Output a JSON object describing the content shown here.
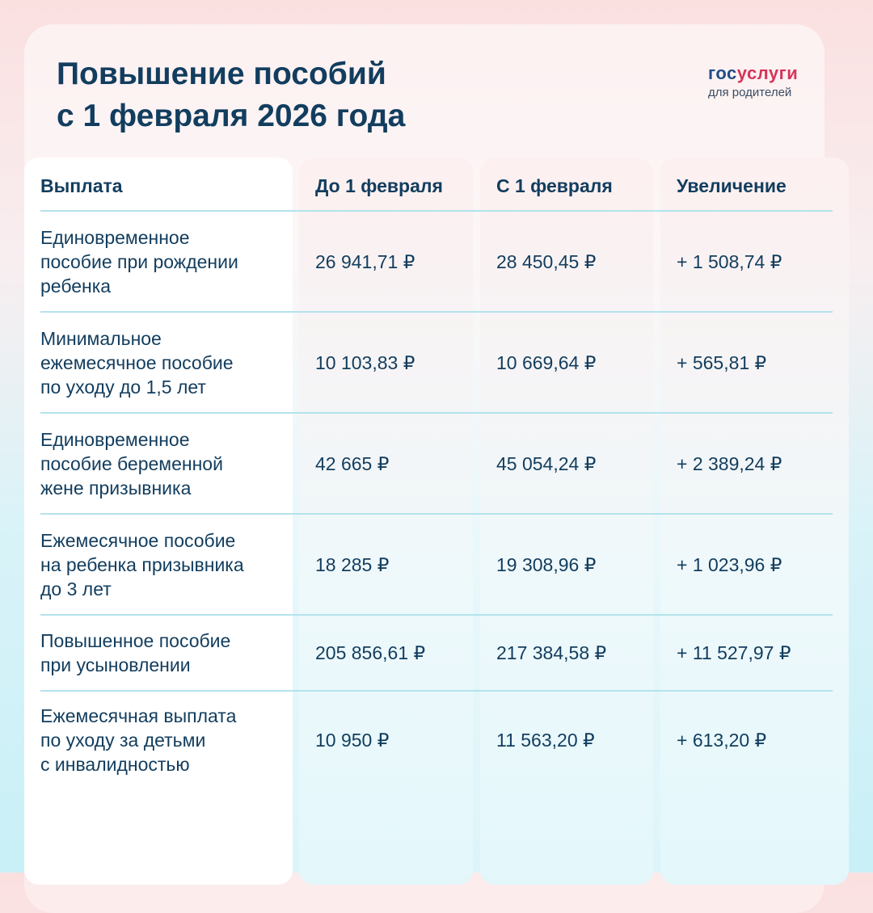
{
  "title": [
    "Повышение пособий",
    "с 1 февраля 2026 года"
  ],
  "logo": {
    "part1": "гос",
    "part2": "услуги",
    "subtitle": "для родителей"
  },
  "table": {
    "headers": [
      "Выплата",
      "До 1 февраля",
      "С 1 февраля",
      "Увеличение"
    ],
    "rows": [
      {
        "name": [
          "Единовременное",
          "пособие при рождении",
          "ребенка"
        ],
        "before": "26 941,71 ₽",
        "after": "28 450,45 ₽",
        "increase": "+ 1 508,74 ₽"
      },
      {
        "name": [
          "Минимальное",
          "ежемесячное пособие",
          "по уходу до 1,5 лет"
        ],
        "before": "10 103,83 ₽",
        "after": "10 669,64 ₽",
        "increase": "+ 565,81 ₽"
      },
      {
        "name": [
          "Единовременное",
          "пособие беременной",
          "жене призывника"
        ],
        "before": "42 665 ₽",
        "after": "45 054,24 ₽",
        "increase": "+ 2 389,24 ₽"
      },
      {
        "name": [
          "Ежемесячное пособие",
          "на ребенка призывника",
          "до 3 лет"
        ],
        "before": "18 285 ₽",
        "after": "19 308,96 ₽",
        "increase": "+ 1 023,96 ₽"
      },
      {
        "name": [
          "Повышенное пособие",
          "при усыновлении"
        ],
        "before": "205 856,61 ₽",
        "after": "217 384,58 ₽",
        "increase": "+ 11 527,97 ₽"
      },
      {
        "name": [
          "Ежемесячная выплата",
          "по уходу за детьми",
          "с инвалидностью"
        ],
        "before": "10 950 ₽",
        "after": "11 563,20 ₽",
        "increase": "+ 613,20 ₽"
      }
    ]
  }
}
